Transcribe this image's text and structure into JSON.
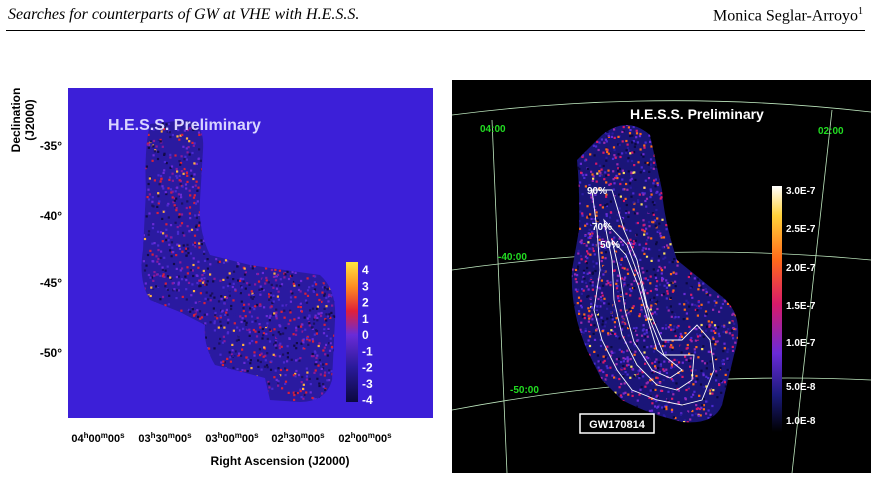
{
  "header": {
    "title": "Searches for counterparts of GW at VHE with H.E.S.S.",
    "author": "Monica Seglar-Arroyo",
    "author_sup": "1"
  },
  "left_plot": {
    "watermark": "H.E.S.S. Preliminary",
    "ylabel_line1": "Declination",
    "ylabel_line2": "(J2000)",
    "xlabel": "Right Ascension (J2000)",
    "dec_ticks": [
      "-35°",
      "-40°",
      "-45°",
      "-50°"
    ],
    "ra_ticks": [
      "04h00m00s",
      "03h30m00s",
      "03h00m00s",
      "02h30m00s",
      "02h00m00s"
    ],
    "colorbar_labels": [
      "4",
      "3",
      "2",
      "1",
      "0",
      "-1",
      "-2",
      "-3",
      "-4"
    ],
    "background_color": "#3c1fd8"
  },
  "right_plot": {
    "watermark": "H.E.S.S. Preliminary",
    "ra_labels": [
      "04:00",
      "02:00"
    ],
    "dec_labels": [
      "-40:00",
      "-50:00"
    ],
    "contour_labels": [
      "90%",
      "70%",
      "50%"
    ],
    "event_label": "GW170814",
    "colorbar_labels": [
      "3.0E-7",
      "2.5E-7",
      "2.0E-7",
      "1.5E-7",
      "1.0E-7",
      "5.0E-8",
      "1.0E-8"
    ],
    "grid_label_color": "#22dd22"
  }
}
